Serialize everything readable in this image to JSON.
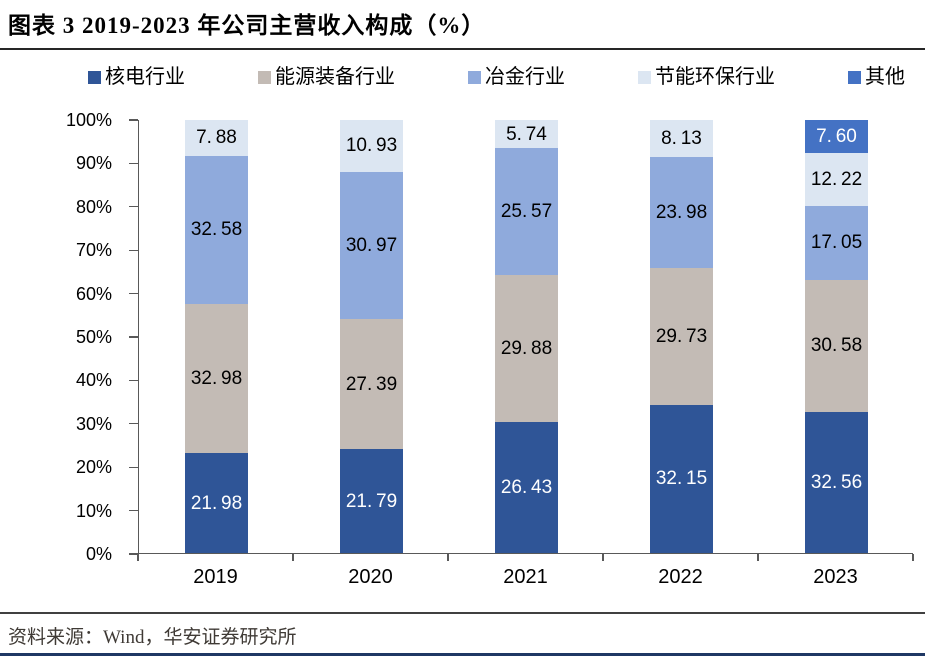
{
  "figure": {
    "title": "图表 3  2019-2023 年公司主营收入构成（%）",
    "source": "资料来源：Wind，华安证券研究所"
  },
  "colors": {
    "axis": "#595959",
    "title_rule": "#262626",
    "source_rule": "#404040",
    "bottom_rule": "#1F3864"
  },
  "chart_data": {
    "type": "bar",
    "subtype": "stacked-100-percent",
    "title": "图表 3  2019-2023 年公司主营收入构成（%）",
    "categories": [
      "2019",
      "2020",
      "2021",
      "2022",
      "2023"
    ],
    "series": [
      {
        "name": "核电行业",
        "color": "#2F5597",
        "label_color": "#FFFFFF",
        "values": [
          21.98,
          21.79,
          26.43,
          32.15,
          32.56
        ]
      },
      {
        "name": "能源装备行业",
        "color": "#C3BBB5",
        "label_color": "#000000",
        "values": [
          32.98,
          27.39,
          29.88,
          29.73,
          30.58
        ]
      },
      {
        "name": "冶金行业",
        "color": "#8FAADC",
        "label_color": "#000000",
        "values": [
          32.58,
          30.97,
          25.57,
          23.98,
          17.05
        ]
      },
      {
        "name": "节能环保行业",
        "color": "#DCE6F2",
        "label_color": "#000000",
        "values": [
          7.88,
          10.93,
          5.74,
          8.13,
          12.22
        ]
      },
      {
        "name": "其他",
        "color": "#4472C4",
        "label_color": "#FFFFFF",
        "values": [
          null,
          null,
          null,
          null,
          7.6
        ]
      }
    ],
    "y_ticks": [
      "0%",
      "10%",
      "20%",
      "30%",
      "40%",
      "50%",
      "60%",
      "70%",
      "80%",
      "90%",
      "100%"
    ],
    "ylim": [
      0,
      100
    ],
    "xlabel": "",
    "ylabel": "",
    "grid": false,
    "legend_position": "top",
    "value_label_decimal_style": "period followed by thin space, e.g. 21. 98"
  }
}
